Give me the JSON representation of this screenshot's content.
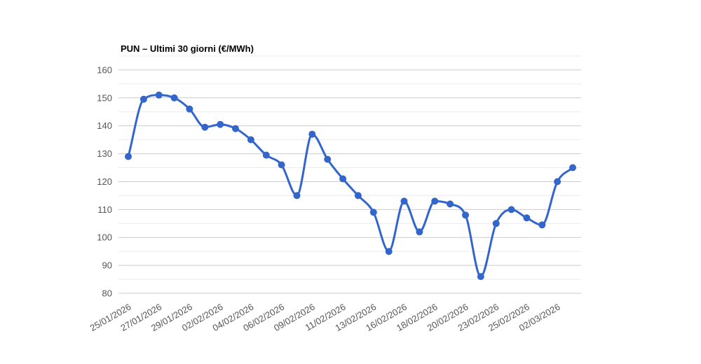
{
  "chart_data": {
    "type": "line",
    "title": "PUN – Ultimi 30 giorni (€/MWh)",
    "unit": "€/MWh",
    "series_name": "PUN",
    "x_tick_labels": [
      "25/01/2026",
      "27/01/2026",
      "29/01/2026",
      "02/02/2026",
      "04/02/2026",
      "06/02/2026",
      "09/02/2026",
      "11/02/2026",
      "13/02/2026",
      "16/02/2026",
      "18/02/2026",
      "20/02/2026",
      "23/02/2026",
      "25/02/2026",
      "02/03/2026"
    ],
    "label_every": 2,
    "values": [
      129,
      149.5,
      151,
      150,
      146,
      139.5,
      140.5,
      139,
      135,
      129.5,
      126,
      115,
      137,
      128,
      121,
      115,
      109,
      95,
      113,
      102,
      113,
      112,
      108,
      86,
      105,
      110,
      107,
      104.5,
      120,
      125
    ],
    "ylim": [
      80,
      165
    ],
    "y_major_ticks": [
      80,
      90,
      100,
      110,
      120,
      130,
      140,
      150,
      160
    ],
    "y_minor_step": 5,
    "grid": true,
    "legend": "none",
    "marker_radius": 5,
    "line_width": 3,
    "x_label_angle_deg": -30,
    "colors": {
      "line": "#3366cc",
      "marker": "#3366cc",
      "grid_major": "#cccccc",
      "grid_minor": "#ebebeb",
      "axis_label": "#555555",
      "title": "#000000",
      "background": "#ffffff"
    }
  }
}
